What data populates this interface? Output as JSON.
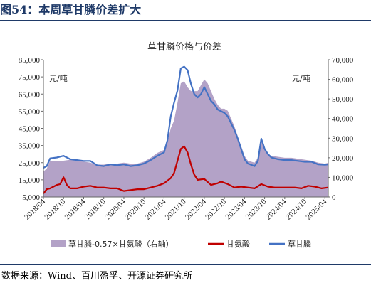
{
  "header": {
    "title": "图54：本周草甘膦价差扩大"
  },
  "footer": {
    "source": "数据来源：Wind、百川盈孚、开源证券研究所"
  },
  "colors": {
    "spread": "#b3a2c7",
    "glycine": "#c00000",
    "glyphosate": "#4472c4",
    "title_rule": "#1f3a68"
  },
  "chart_data": {
    "type": "line",
    "title": "草甘膦价格与价差",
    "left_unit": "元/吨",
    "right_unit": "元/吨",
    "ylim_left": [
      5000,
      85000
    ],
    "yticks_left": [
      5000,
      15000,
      25000,
      35000,
      45000,
      55000,
      65000,
      75000,
      85000
    ],
    "ytick_labels_left": [
      "5,000",
      "15,000",
      "25,000",
      "35,000",
      "45,000",
      "55,000",
      "65,000",
      "75,000",
      "85,000"
    ],
    "ylim_right": [
      0,
      70000
    ],
    "yticks_right": [
      0,
      10000,
      20000,
      30000,
      40000,
      50000,
      60000,
      70000
    ],
    "ytick_labels_right": [
      "0",
      "10,000",
      "20,000",
      "30,000",
      "40,000",
      "50,000",
      "60,000",
      "70,000"
    ],
    "xlim": [
      "2018-04",
      "2025-05"
    ],
    "x_tick_labels": [
      "2018/04",
      "2018/10",
      "2019/04",
      "2019/10",
      "2020/04",
      "2020/10",
      "2021/04",
      "2021/10",
      "2022/04",
      "2022/10",
      "2023/04",
      "2023/10",
      "2024/04",
      "2024/10",
      "2025/04"
    ],
    "legend": [
      "草甘膦-0.57×甘氨酸（右轴）",
      "甘氨酸",
      "草甘膦"
    ],
    "legend_position": "bottom",
    "grid": false,
    "series": [
      {
        "name": "草甘膦",
        "axis": "left",
        "kind": "line",
        "points": [
          [
            "2018-04",
            22000
          ],
          [
            "2018-05",
            23000
          ],
          [
            "2018-06",
            27500
          ],
          [
            "2018-08",
            28000
          ],
          [
            "2018-10",
            29000
          ],
          [
            "2018-12",
            27000
          ],
          [
            "2019-02",
            26500
          ],
          [
            "2019-04",
            26000
          ],
          [
            "2019-06",
            26000
          ],
          [
            "2019-08",
            23500
          ],
          [
            "2019-10",
            23000
          ],
          [
            "2019-12",
            24000
          ],
          [
            "2020-02",
            23500
          ],
          [
            "2020-04",
            24000
          ],
          [
            "2020-06",
            23000
          ],
          [
            "2020-08",
            23500
          ],
          [
            "2020-10",
            24500
          ],
          [
            "2020-12",
            26500
          ],
          [
            "2021-02",
            29000
          ],
          [
            "2021-04",
            31000
          ],
          [
            "2021-05",
            38000
          ],
          [
            "2021-06",
            52000
          ],
          [
            "2021-07",
            60000
          ],
          [
            "2021-08",
            67000
          ],
          [
            "2021-09",
            80000
          ],
          [
            "2021-10",
            81000
          ],
          [
            "2021-11",
            79000
          ],
          [
            "2021-12",
            71000
          ],
          [
            "2022-01",
            65000
          ],
          [
            "2022-02",
            63000
          ],
          [
            "2022-03",
            65000
          ],
          [
            "2022-04",
            69000
          ],
          [
            "2022-05",
            65000
          ],
          [
            "2022-06",
            61000
          ],
          [
            "2022-07",
            59000
          ],
          [
            "2022-08",
            56000
          ],
          [
            "2022-09",
            55000
          ],
          [
            "2022-10",
            54000
          ],
          [
            "2022-11",
            52000
          ],
          [
            "2022-12",
            48000
          ],
          [
            "2023-01",
            44000
          ],
          [
            "2023-02",
            39000
          ],
          [
            "2023-03",
            33000
          ],
          [
            "2023-04",
            27000
          ],
          [
            "2023-05",
            24500
          ],
          [
            "2023-07",
            23000
          ],
          [
            "2023-08",
            26000
          ],
          [
            "2023-09",
            39000
          ],
          [
            "2023-10",
            33000
          ],
          [
            "2023-11",
            30000
          ],
          [
            "2023-12",
            28000
          ],
          [
            "2024-02",
            27000
          ],
          [
            "2024-04",
            26500
          ],
          [
            "2024-06",
            26500
          ],
          [
            "2024-08",
            26000
          ],
          [
            "2024-10",
            25500
          ],
          [
            "2024-12",
            25500
          ],
          [
            "2025-02",
            24000
          ],
          [
            "2025-04",
            23800
          ],
          [
            "2025-05",
            24000
          ]
        ]
      },
      {
        "name": "甘氨酸",
        "axis": "left",
        "kind": "line",
        "points": [
          [
            "2018-04",
            7000
          ],
          [
            "2018-05",
            9500
          ],
          [
            "2018-06",
            10000
          ],
          [
            "2018-08",
            12000
          ],
          [
            "2018-09",
            12500
          ],
          [
            "2018-10",
            16500
          ],
          [
            "2018-11",
            12000
          ],
          [
            "2018-12",
            10000
          ],
          [
            "2019-02",
            10000
          ],
          [
            "2019-04",
            11000
          ],
          [
            "2019-06",
            11500
          ],
          [
            "2019-08",
            10500
          ],
          [
            "2019-10",
            10500
          ],
          [
            "2019-12",
            10000
          ],
          [
            "2020-02",
            10000
          ],
          [
            "2020-04",
            8500
          ],
          [
            "2020-06",
            9000
          ],
          [
            "2020-08",
            9500
          ],
          [
            "2020-10",
            9500
          ],
          [
            "2020-12",
            10500
          ],
          [
            "2021-02",
            11500
          ],
          [
            "2021-04",
            13000
          ],
          [
            "2021-06",
            16000
          ],
          [
            "2021-07",
            19000
          ],
          [
            "2021-08",
            26000
          ],
          [
            "2021-09",
            33000
          ],
          [
            "2021-10",
            34500
          ],
          [
            "2021-11",
            31000
          ],
          [
            "2021-12",
            24000
          ],
          [
            "2022-01",
            18000
          ],
          [
            "2022-02",
            15000
          ],
          [
            "2022-04",
            15500
          ],
          [
            "2022-06",
            12000
          ],
          [
            "2022-08",
            13000
          ],
          [
            "2022-09",
            14000
          ],
          [
            "2022-11",
            12500
          ],
          [
            "2023-01",
            10500
          ],
          [
            "2023-03",
            11000
          ],
          [
            "2023-05",
            10500
          ],
          [
            "2023-07",
            10000
          ],
          [
            "2023-09",
            12500
          ],
          [
            "2023-11",
            11000
          ],
          [
            "2024-01",
            10500
          ],
          [
            "2024-03",
            10500
          ],
          [
            "2024-05",
            10500
          ],
          [
            "2024-07",
            10500
          ],
          [
            "2024-09",
            10000
          ],
          [
            "2024-11",
            11500
          ],
          [
            "2025-01",
            11000
          ],
          [
            "2025-03",
            10000
          ],
          [
            "2025-05",
            10500
          ]
        ]
      },
      {
        "name": "草甘膦-0.57×甘氨酸（右轴）",
        "axis": "right",
        "kind": "area",
        "points": [
          [
            "2018-04",
            13000
          ],
          [
            "2018-05",
            14500
          ],
          [
            "2018-06",
            18500
          ],
          [
            "2018-08",
            18500
          ],
          [
            "2018-10",
            18500
          ],
          [
            "2018-12",
            19000
          ],
          [
            "2019-02",
            18500
          ],
          [
            "2019-04",
            18000
          ],
          [
            "2019-06",
            17500
          ],
          [
            "2019-08",
            16500
          ],
          [
            "2019-10",
            16500
          ],
          [
            "2019-12",
            17000
          ],
          [
            "2020-02",
            17000
          ],
          [
            "2020-04",
            17500
          ],
          [
            "2020-06",
            17000
          ],
          [
            "2020-08",
            17000
          ],
          [
            "2020-10",
            18000
          ],
          [
            "2020-12",
            20000
          ],
          [
            "2021-02",
            22500
          ],
          [
            "2021-04",
            24000
          ],
          [
            "2021-05",
            28000
          ],
          [
            "2021-06",
            35000
          ],
          [
            "2021-07",
            39000
          ],
          [
            "2021-08",
            48000
          ],
          [
            "2021-09",
            58000
          ],
          [
            "2021-10",
            59000
          ],
          [
            "2021-11",
            56000
          ],
          [
            "2021-12",
            54000
          ],
          [
            "2022-01",
            54000
          ],
          [
            "2022-02",
            54000
          ],
          [
            "2022-03",
            57000
          ],
          [
            "2022-04",
            60000
          ],
          [
            "2022-05",
            58000
          ],
          [
            "2022-06",
            54000
          ],
          [
            "2022-07",
            50000
          ],
          [
            "2022-08",
            47000
          ],
          [
            "2022-09",
            45000
          ],
          [
            "2022-10",
            45000
          ],
          [
            "2022-11",
            44000
          ],
          [
            "2022-12",
            40000
          ],
          [
            "2023-01",
            36000
          ],
          [
            "2023-02",
            31000
          ],
          [
            "2023-03",
            26000
          ],
          [
            "2023-04",
            21000
          ],
          [
            "2023-05",
            18500
          ],
          [
            "2023-07",
            17500
          ],
          [
            "2023-08",
            20000
          ],
          [
            "2023-09",
            30000
          ],
          [
            "2023-10",
            24000
          ],
          [
            "2023-11",
            22000
          ],
          [
            "2023-12",
            21000
          ],
          [
            "2024-02",
            20500
          ],
          [
            "2024-04",
            20000
          ],
          [
            "2024-06",
            20000
          ],
          [
            "2024-08",
            19500
          ],
          [
            "2024-10",
            19000
          ],
          [
            "2024-12",
            18500
          ],
          [
            "2025-02",
            17500
          ],
          [
            "2025-04",
            17000
          ],
          [
            "2025-05",
            17500
          ]
        ]
      }
    ]
  }
}
